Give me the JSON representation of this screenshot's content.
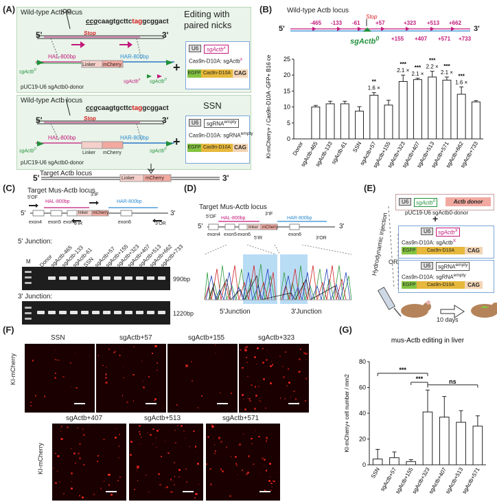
{
  "panels": {
    "A": "(A)",
    "B": "(B)",
    "C": "(C)",
    "D": "(D)",
    "E": "(E)",
    "F": "(F)",
    "G": "(G)"
  },
  "panel_a": {
    "wt_locus": "Wild-type Actb locus",
    "editing_title": "Editing with",
    "editing_title2": "paired nicks",
    "ssn_title": "SSN",
    "seq_pre": "ccg",
    "seq_mid": "caagtgcttc",
    "seq_tag": "tag",
    "seq_post": "gcggact",
    "stop": "Stop",
    "five": "5'",
    "three": "3'",
    "hal": "HAL-800bp",
    "har": "HAR-800bp",
    "linker": "Linker",
    "mcherry": "mCherry",
    "sg0": "sgActb",
    "sgx": "sgActb",
    "sup0": "0",
    "supx": "x",
    "donor1": "pUC19-U6 sgActb0-donor",
    "donor2": "pUC19-U6 sgActb0-donor",
    "u6": "U6",
    "sgrna_x": "sgActb",
    "cas9_line1": "Cas9n-D10A: sgActb",
    "sgrna_empty": "sgRNA",
    "empty": "empty",
    "cas9_line2": "Cas9n-D10A: sgRNA",
    "egfp": "EGFP",
    "cas9": "Cas9n-D10A",
    "cag": "CAG",
    "target": "Target Actb locus"
  },
  "panel_b": {
    "locus": "Wild-type Actb locus",
    "stop": "Stop",
    "sg0": "sgActb",
    "sg0_sup": "0",
    "site_labels_top": [
      "-465",
      "-133",
      "-61",
      "+57",
      "+323",
      "+513",
      "+662"
    ],
    "site_labels_bottom": [
      "+155",
      "+407",
      "+571",
      "+733"
    ],
    "ylabel": "KI-mCherry+ / Cas9n-D10A -GFP+ B16 cells (%)",
    "fold_labels": [
      "1.6 ×",
      "2.1 ×",
      "2.1 ×",
      "2.2 ×",
      "2.1 ×",
      "1.6 ×"
    ]
  },
  "chart_data": [
    {
      "type": "bar",
      "title": "",
      "xlabel": "",
      "ylabel": "KI-mCherry+ / Cas9n-D10A -GFP+ B16 cells (%)",
      "ylim": [
        0,
        25
      ],
      "yticks": [
        0,
        5,
        10,
        15,
        20,
        25
      ],
      "categories": [
        "Donor",
        "sgActb-465",
        "sgActb-133",
        "sgActb-61",
        "SSN",
        "sgActb+57",
        "sgActb+155",
        "sgActb+323",
        "sgActb+407",
        "sgActb+513",
        "sgActb+571",
        "sgActb+662",
        "sgActb+733"
      ],
      "values": [
        0,
        10.0,
        11.0,
        11.0,
        8.7,
        13.7,
        10.6,
        18.0,
        18.6,
        19.4,
        18.4,
        14.0,
        11.6
      ],
      "errors": [
        0,
        0.5,
        0.8,
        0.8,
        1.4,
        0.8,
        1.5,
        2.0,
        0.4,
        1.8,
        1.0,
        2.3,
        0.4
      ],
      "significance": [
        "",
        "",
        "",
        "",
        "",
        "**",
        "",
        "***",
        "***",
        "***",
        "***",
        "***",
        ""
      ],
      "grid": false
    },
    {
      "type": "bar",
      "title": "mus-Actb editing in liver",
      "xlabel": "",
      "ylabel": "KI-mCherry+ cell number / mm2",
      "ylim": [
        0,
        80
      ],
      "yticks": [
        0,
        20,
        40,
        60,
        80
      ],
      "categories": [
        "SSN",
        "sgActb+57",
        "sgActb+155",
        "sgActb+323",
        "sgActb+407",
        "sgActb+513",
        "sgActb+571"
      ],
      "values": [
        4.5,
        5.5,
        2.5,
        41,
        37,
        33,
        30
      ],
      "errors": [
        7.5,
        4.5,
        1.5,
        17,
        16,
        9,
        8
      ],
      "significance_brackets": [
        {
          "from": "SSN",
          "to": "sgActb+323",
          "label": "***"
        },
        {
          "from": "sgActb+155",
          "to": "sgActb+323",
          "label": "***"
        },
        {
          "from": "sgActb+323",
          "to": "sgActb+571",
          "label": "ns"
        }
      ],
      "grid": false
    }
  ],
  "panel_c": {
    "title": "Target Mus-Actb locus",
    "hal": "HAL-800bp",
    "har": "HAR-800bp",
    "linker": "linker",
    "mcherry": "mCherry",
    "primers": [
      "5'OF",
      "3'IF",
      "5'IR",
      "3'OR"
    ],
    "exons": [
      "exon4",
      "exon5",
      "exon6",
      "exon6"
    ],
    "five": "5'",
    "three": "3'",
    "j5": "5' Junction:",
    "j3": "3' Junction:",
    "marker": "M",
    "lanes": [
      "Donor",
      "sgActb-465",
      "sgActb-133",
      "sgActb-61",
      "SSN",
      "sgActb+57",
      "sgActb+155",
      "sgActb+323",
      "sgActb+407",
      "sgActb+513",
      "sgActb+662",
      "sgActb+733"
    ],
    "size1": "990bp",
    "size2": "1220bp"
  },
  "panel_d": {
    "title": "Target Mus-Actb locus",
    "hal": "HAL-800bp",
    "har": "HAR-800bp",
    "linker": "linker",
    "mcherry": "mCherry",
    "primers": [
      "5'OF",
      "3'IF",
      "5'IR",
      "3'OR"
    ],
    "exons": [
      "exon4",
      "exon5",
      "exon6",
      "exon6"
    ],
    "five": "5'",
    "three": "3'",
    "j5": "5'Junction",
    "j3": "3'Junction"
  },
  "panel_e": {
    "u6": "U6",
    "sg0": "sgActb",
    "sg0_sup": "0",
    "donor_box": "Actb donor",
    "donor_name": "pUC19-U6 sgActb0-donor",
    "sgx": "sgActb",
    "sgx_sup": "X",
    "cas9_line1": "Cas9n-D10A: sgActb",
    "or": "OR",
    "sgrna": "sgRNA",
    "empty": "empty",
    "cas9_line2": "Cas9n-D10A: sgRNA",
    "egfp": "EGFP",
    "cas9": "Cas9n-D10A",
    "cag": "CAG",
    "injection": "Hydrodynamic injection",
    "days": "10 days"
  },
  "panel_f": {
    "ylabel": "KI-mCherry",
    "top": [
      "SSN",
      "sgActb+57",
      "sgActb+155",
      "sgActb+323"
    ],
    "bottom": [
      "sgActb+407",
      "sgActb+513",
      "sgActb+571"
    ]
  },
  "colors": {
    "magenta": "#c2187a",
    "green": "#21903a",
    "blue": "#2a8ad0",
    "red": "#d21e1e",
    "panel_bg": "#eaf4ea",
    "bar_fill": "#ffffff",
    "mcherry": "#f2a9a0",
    "egfp": "#84c341",
    "cas9": "#e6b83c",
    "micro_bg": "#1a0000"
  }
}
